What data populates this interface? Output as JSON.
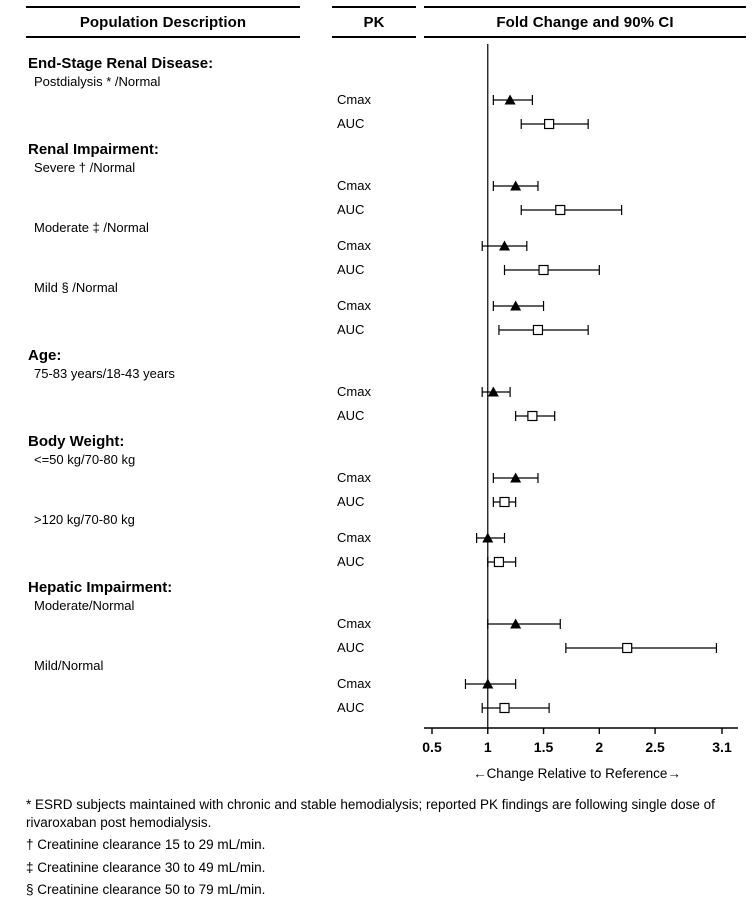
{
  "headers": {
    "population": "Population Description",
    "pk": "PK",
    "fold_change": "Fold Change and 90% CI"
  },
  "chart_data": {
    "type": "scatter",
    "subtype": "forest-plot",
    "title": "Fold Change and 90% CI",
    "xlabel": "Change Relative to Reference",
    "axis_caption": "←Change Relative to Reference→",
    "x_ticks": [
      0.5,
      1,
      1.5,
      2,
      2.5,
      3.1
    ],
    "x_range": [
      0.5,
      3.1
    ],
    "reference_value": 1,
    "grid": false,
    "marker_legend": {
      "Cmax": "filled-black-triangle",
      "AUC": "open-white-square"
    },
    "groups": [
      {
        "label": "End-Stage Renal Disease:",
        "populations": [
          {
            "label": "Postdialysis * /Normal",
            "measures": [
              {
                "pk": "Cmax",
                "est": 1.2,
                "lo": 1.05,
                "hi": 1.4
              },
              {
                "pk": "AUC",
                "est": 1.55,
                "lo": 1.3,
                "hi": 1.9
              }
            ]
          }
        ]
      },
      {
        "label": "Renal Impairment:",
        "populations": [
          {
            "label": "Severe † /Normal",
            "measures": [
              {
                "pk": "Cmax",
                "est": 1.25,
                "lo": 1.05,
                "hi": 1.45
              },
              {
                "pk": "AUC",
                "est": 1.65,
                "lo": 1.3,
                "hi": 2.2
              }
            ]
          },
          {
            "label": "Moderate ‡ /Normal",
            "measures": [
              {
                "pk": "Cmax",
                "est": 1.15,
                "lo": 0.95,
                "hi": 1.35
              },
              {
                "pk": "AUC",
                "est": 1.5,
                "lo": 1.15,
                "hi": 2.0
              }
            ]
          },
          {
            "label": "Mild § /Normal",
            "measures": [
              {
                "pk": "Cmax",
                "est": 1.25,
                "lo": 1.05,
                "hi": 1.5
              },
              {
                "pk": "AUC",
                "est": 1.45,
                "lo": 1.1,
                "hi": 1.9
              }
            ]
          }
        ]
      },
      {
        "label": "Age:",
        "populations": [
          {
            "label": "75-83 years/18-43 years",
            "measures": [
              {
                "pk": "Cmax",
                "est": 1.05,
                "lo": 0.95,
                "hi": 1.2
              },
              {
                "pk": "AUC",
                "est": 1.4,
                "lo": 1.25,
                "hi": 1.6
              }
            ]
          }
        ]
      },
      {
        "label": "Body Weight:",
        "populations": [
          {
            "label": "<=50 kg/70-80 kg",
            "measures": [
              {
                "pk": "Cmax",
                "est": 1.25,
                "lo": 1.05,
                "hi": 1.45
              },
              {
                "pk": "AUC",
                "est": 1.15,
                "lo": 1.05,
                "hi": 1.25
              }
            ]
          },
          {
            "label": ">120 kg/70-80 kg",
            "measures": [
              {
                "pk": "Cmax",
                "est": 1.0,
                "lo": 0.9,
                "hi": 1.15
              },
              {
                "pk": "AUC",
                "est": 1.1,
                "lo": 1.0,
                "hi": 1.25
              }
            ]
          }
        ]
      },
      {
        "label": "Hepatic Impairment:",
        "populations": [
          {
            "label": "Moderate/Normal",
            "measures": [
              {
                "pk": "Cmax",
                "est": 1.25,
                "lo": 1.0,
                "hi": 1.65
              },
              {
                "pk": "AUC",
                "est": 2.25,
                "lo": 1.7,
                "hi": 3.05
              }
            ]
          },
          {
            "label": "Mild/Normal",
            "measures": [
              {
                "pk": "Cmax",
                "est": 1.0,
                "lo": 0.8,
                "hi": 1.25
              },
              {
                "pk": "AUC",
                "est": 1.15,
                "lo": 0.95,
                "hi": 1.55
              }
            ]
          }
        ]
      }
    ]
  },
  "footnotes": [
    "* ESRD subjects maintained with chronic and stable hemodialysis; reported PK findings are following single dose of rivaroxaban post hemodialysis.",
    "† Creatinine clearance 15 to 29 mL/min.",
    "‡ Creatinine clearance 30 to 49 mL/min.",
    "§ Creatinine clearance 50 to 79 mL/min."
  ],
  "colors": {
    "foreground": "#000000",
    "background": "#ffffff"
  }
}
